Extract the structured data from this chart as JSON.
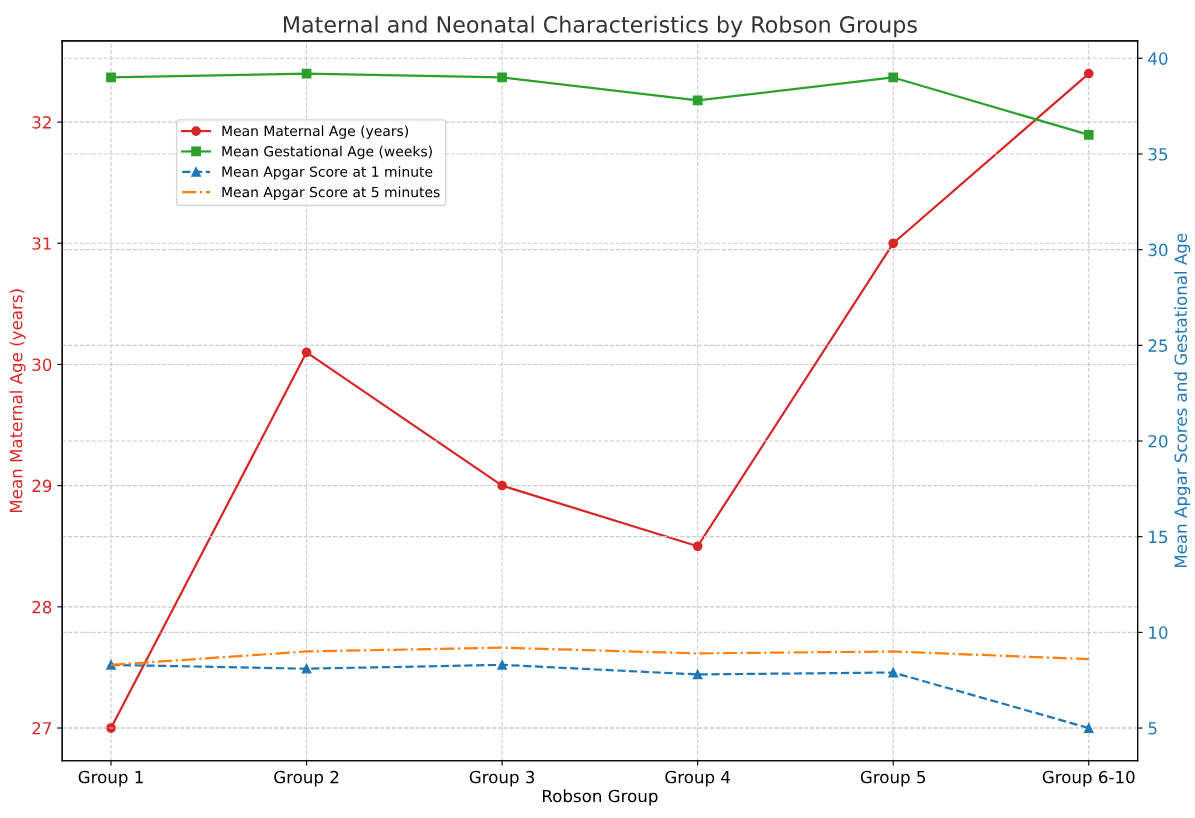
{
  "chart_data": {
    "type": "line",
    "title": "Maternal and Neonatal Characteristics by Robson Groups",
    "xlabel": "Robson Group",
    "ylabel": "Mean Maternal Age (years)",
    "y2label": "Mean Apgar Scores and Gestational Age",
    "categories": [
      "Group 1",
      "Group 2",
      "Group 3",
      "Group 4",
      "Group 5",
      "Group 6-10"
    ],
    "series": [
      {
        "name": "Mean Maternal Age (years)",
        "color": "#d62728",
        "marker": "circle",
        "line_style": "solid",
        "values": [
          27.0,
          30.1,
          29.0,
          28.5,
          31.0,
          32.4
        ]
      },
      {
        "name": "Mean Gestational Age (weeks)",
        "color": "#2ca02c",
        "marker": "square",
        "line_style": "solid",
        "axis": "y2",
        "values": [
          39.0,
          39.2,
          39.0,
          37.8,
          39.0,
          36.0
        ]
      },
      {
        "name": "Mean Apgar Score at 1 minute",
        "color": "#1f77b4",
        "marker": "triangle",
        "line_style": "dashed",
        "axis": "y2",
        "values": [
          8.3,
          8.1,
          8.3,
          7.8,
          7.9,
          5.0
        ]
      },
      {
        "name": "Mean Apgar Score at 5 minutes",
        "color": "#ff7f0e",
        "marker": "none",
        "line_style": "dashdot",
        "axis": "y2",
        "values": [
          8.3,
          9.0,
          9.2,
          8.9,
          9.0,
          8.6
        ]
      }
    ],
    "ylim": [
      26.73,
      32.67
    ],
    "yticks": [
      27,
      28,
      29,
      30,
      31,
      32
    ],
    "y2lim": [
      3.29,
      40.91
    ],
    "y2ticks": [
      5,
      10,
      15,
      20,
      25,
      30,
      35,
      40
    ],
    "grid": true,
    "legend": "top left"
  }
}
